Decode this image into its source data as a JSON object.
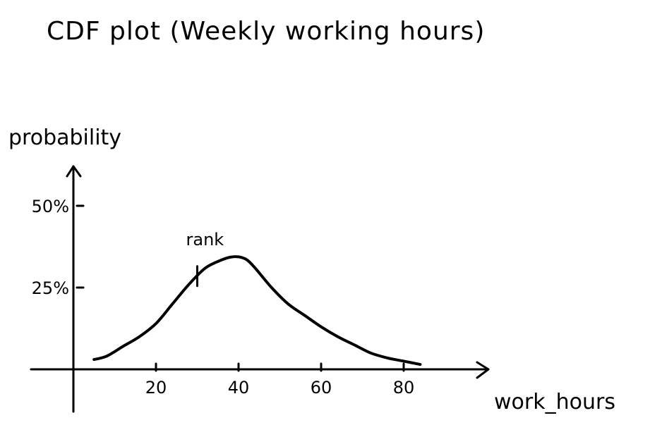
{
  "chart_data": {
    "type": "line",
    "title": "CDF plot (Weekly working hours)",
    "xlabel": "work_hours",
    "ylabel": "probability",
    "xlim": [
      0,
      95
    ],
    "ylim": [
      0,
      55
    ],
    "x_ticks": [
      {
        "value": 20,
        "label": "20"
      },
      {
        "value": 40,
        "label": "40"
      },
      {
        "value": 60,
        "label": "60"
      },
      {
        "value": 80,
        "label": "80"
      }
    ],
    "y_ticks": [
      {
        "value": 25,
        "label": "25%"
      },
      {
        "value": 50,
        "label": "50%"
      }
    ],
    "series": [
      {
        "x": [
          5,
          8,
          12,
          16,
          20,
          24,
          28,
          32,
          36,
          38,
          40,
          42,
          44,
          48,
          52,
          56,
          60,
          64,
          68,
          72,
          76,
          80,
          84
        ],
        "y": [
          3,
          4,
          7,
          10,
          14,
          20,
          26,
          31,
          33.5,
          34.3,
          34.4,
          33.5,
          31,
          25,
          20,
          16.5,
          13,
          10,
          7.5,
          5,
          3.5,
          2.5,
          1.5
        ]
      }
    ],
    "annotations": [
      {
        "text": "rank",
        "x": 30
      }
    ],
    "grid": false,
    "colors": {
      "line": "#000000",
      "background": "#ffffff"
    }
  }
}
